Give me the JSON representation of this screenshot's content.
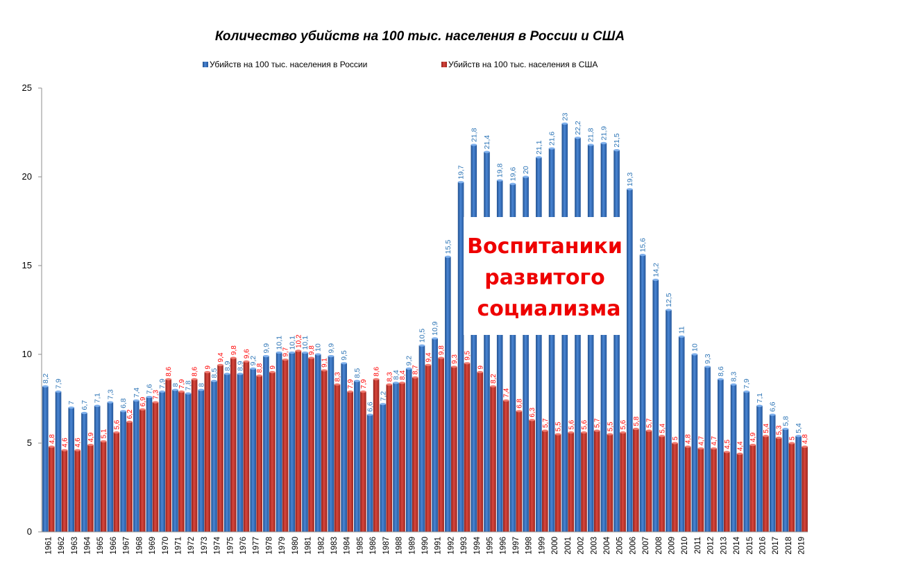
{
  "chart_data": {
    "type": "bar",
    "title": "Количество убийств на 100 тыс. населения в России и США",
    "xlabel": "",
    "ylabel": "",
    "ylim": [
      0,
      25
    ],
    "yticks": [
      "0",
      "5",
      "10",
      "15",
      "20",
      "25"
    ],
    "legend_position": "top",
    "grid": false,
    "categories": [
      "1961",
      "1962",
      "1963",
      "1964",
      "1965",
      "1966",
      "1967",
      "1968",
      "1969",
      "1970",
      "1971",
      "1972",
      "1973",
      "1974",
      "1975",
      "1976",
      "1977",
      "1978",
      "1979",
      "1980",
      "1981",
      "1982",
      "1983",
      "1984",
      "1985",
      "1986",
      "1987",
      "1988",
      "1989",
      "1990",
      "1991",
      "1992",
      "1993",
      "1994",
      "1995",
      "1996",
      "1997",
      "1998",
      "1999",
      "2000",
      "2001",
      "2002",
      "2003",
      "2004",
      "2005",
      "2006",
      "2007",
      "2008",
      "2009",
      "2010",
      "2011",
      "2012",
      "2013",
      "2014",
      "2015",
      "2016",
      "2017",
      "2018",
      "2019"
    ],
    "series": [
      {
        "name": "Убийств на 100 тыс. населения в России",
        "color": "#3a6fc0",
        "values": [
          8.2,
          7.9,
          7,
          6.7,
          7.1,
          7.3,
          6.8,
          7.4,
          7.6,
          7.9,
          8,
          7.8,
          8,
          8.5,
          8.9,
          8.9,
          9.2,
          9.9,
          10.1,
          10.1,
          10.1,
          10,
          9.9,
          9.5,
          8.5,
          6.6,
          7.2,
          8.4,
          9.2,
          10.5,
          10.9,
          15.5,
          19.7,
          21.8,
          21.4,
          19.8,
          19.6,
          20,
          21.1,
          21.6,
          23,
          22.2,
          21.8,
          21.9,
          21.5,
          19.3,
          15.6,
          14.2,
          12.5,
          11,
          10,
          9.3,
          8.6,
          8.3,
          7.9,
          7.1,
          6.6,
          5.8,
          5.4
        ],
        "labels": [
          "8,2",
          "7,9",
          "7",
          "6,7",
          "7,1",
          "7,3",
          "6,8",
          "7,4",
          "7,6",
          "7,9",
          "8",
          "7,8",
          "8",
          "8,5",
          "8,9",
          "8,9",
          "9,2",
          "9,9",
          "10,1",
          "10,1",
          "10,1",
          "10",
          "9,9",
          "9,5",
          "8,5",
          "6,6",
          "7,2",
          "8,4",
          "9,2",
          "10,5",
          "10,9",
          "15,5",
          "19,7",
          "21,8",
          "21,4",
          "19,8",
          "19,6",
          "20",
          "21,1",
          "21,6",
          "23",
          "22,2",
          "21,8",
          "21,9",
          "21,5",
          "19,3",
          "15,6",
          "14,2",
          "12,5",
          "11",
          "10",
          "9,3",
          "8,6",
          "8,3",
          "7,9",
          "7,1",
          "6,6",
          "5,8",
          "5,4"
        ]
      },
      {
        "name": "Убийств на 100 тыс. населения в США",
        "color": "#c0392b",
        "values": [
          4.8,
          4.6,
          4.6,
          4.9,
          5.1,
          5.6,
          6.2,
          6.9,
          7.3,
          8.6,
          7.9,
          8.6,
          9,
          9.4,
          9.8,
          9.6,
          8.8,
          9,
          9.7,
          10.2,
          9.8,
          9.1,
          8.3,
          7.9,
          7.9,
          8.6,
          8.3,
          8.4,
          8.7,
          9.4,
          9.8,
          9.3,
          9.5,
          9,
          8.2,
          7.4,
          6.8,
          6.3,
          5.7,
          5.5,
          5.6,
          5.6,
          5.7,
          5.5,
          5.6,
          5.8,
          5.7,
          5.4,
          5,
          4.8,
          4.7,
          4.7,
          4.5,
          4.4,
          4.9,
          5.4,
          5.3,
          5,
          4.8
        ],
        "labels": [
          "4,8",
          "4,6",
          "4,6",
          "4,9",
          "5,1",
          "5,6",
          "6,2",
          "6,9",
          "7,3",
          "8,6",
          "7,9",
          "8,6",
          "9",
          "9,4",
          "9,8",
          "9,6",
          "8,8",
          "9",
          "9,7",
          "10,2",
          "9,8",
          "9,1",
          "8,3",
          "7,9",
          "7,9",
          "8,6",
          "8,3",
          "8,4",
          "8,7",
          "9,4",
          "9,8",
          "9,3",
          "9,5",
          "9",
          "8,2",
          "7,4",
          "6,8",
          "6,3",
          "5,7",
          "5,5",
          "5,6",
          "5,6",
          "5,7",
          "5,5",
          "5,6",
          "5,8",
          "5,7",
          "5,4",
          "5",
          "4,8",
          "4,7",
          "4,7",
          "4,5",
          "4,4",
          "4,9",
          "5,4",
          "5,3",
          "5",
          "4,8"
        ]
      }
    ],
    "annotation": {
      "lines": [
        "Воспитаники",
        "развитого",
        "социализма"
      ],
      "color": "#ee0000"
    }
  }
}
